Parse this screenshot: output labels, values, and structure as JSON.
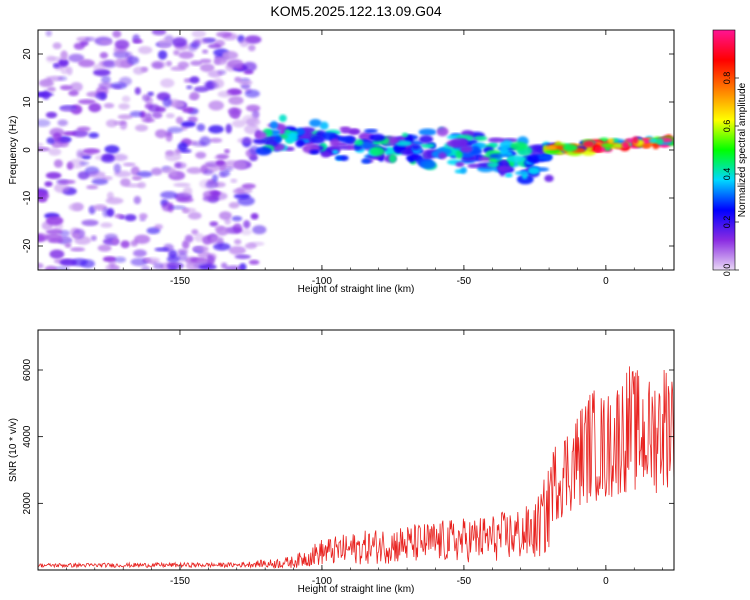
{
  "title": "KOM5.2025.122.13.09.G04",
  "chart_data": [
    {
      "type": "heatmap",
      "xlabel": "Height of straight line (km)",
      "ylabel": "Frequency (Hz)",
      "xlim": [
        -200,
        24
      ],
      "ylim": [
        -25,
        25
      ],
      "x_ticks": [
        -150,
        -100,
        -50,
        0
      ],
      "y_ticks": [
        -20,
        -10,
        0,
        10,
        20
      ],
      "colorbar": {
        "label": "Normalized spectral amplitude",
        "range": [
          0,
          1
        ],
        "ticks": [
          "0.0",
          "0.2",
          "0.4",
          "0.6",
          "0.8"
        ],
        "colors": [
          "#e9d8f5",
          "#8a2be2",
          "#0000ff",
          "#00d9ff",
          "#00ff00",
          "#ffff00",
          "#ff7f00",
          "#ff0000",
          "#ff1493"
        ]
      },
      "segments": [
        {
          "x_range": [
            -200,
            -122
          ],
          "freq_center": 0,
          "freq_spread": 25,
          "amplitude": 0.12,
          "note": "diffuse noise"
        },
        {
          "x_range": [
            -122,
            -20
          ],
          "freq_center_start": 3,
          "freq_center_end": -2,
          "freq_spread": 4,
          "amplitude": 0.25
        },
        {
          "x_range": [
            -20,
            24
          ],
          "freq_center_start": 0,
          "freq_center_end": 2,
          "freq_spread": 1.2,
          "amplitude": 0.75
        }
      ]
    },
    {
      "type": "line",
      "xlabel": "Height of straight line (km)",
      "ylabel": "SNR (10 * v/v)",
      "xlim": [
        -200,
        24
      ],
      "ylim": [
        0,
        7200
      ],
      "x_ticks": [
        -150,
        -100,
        -50,
        0
      ],
      "y_ticks": [
        2000,
        4000,
        6000
      ],
      "color": "#e8221f",
      "envelope": [
        {
          "x": -200,
          "y": 150
        },
        {
          "x": -130,
          "y": 180
        },
        {
          "x": -110,
          "y": 400
        },
        {
          "x": -100,
          "y": 900
        },
        {
          "x": -80,
          "y": 1200
        },
        {
          "x": -60,
          "y": 1400
        },
        {
          "x": -40,
          "y": 1600
        },
        {
          "x": -25,
          "y": 1900
        },
        {
          "x": -20,
          "y": 3000
        },
        {
          "x": -12,
          "y": 3800
        },
        {
          "x": -5,
          "y": 4600
        },
        {
          "x": 0,
          "y": 4400
        },
        {
          "x": 8,
          "y": 5200
        },
        {
          "x": 15,
          "y": 4800
        },
        {
          "x": 24,
          "y": 5600
        }
      ]
    }
  ]
}
